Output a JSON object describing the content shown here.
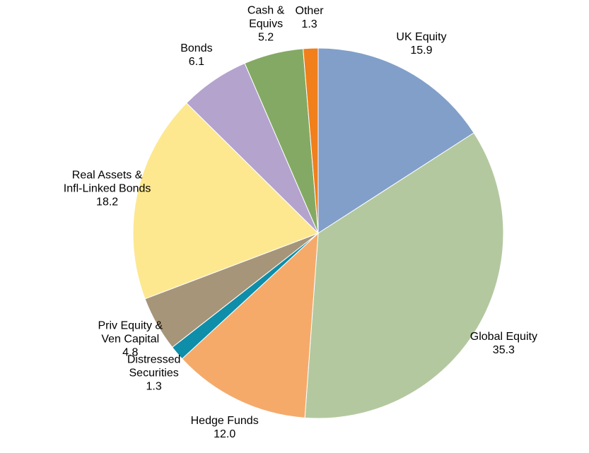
{
  "chart_data": {
    "type": "pie",
    "categories": [
      "UK Equity",
      "Global Equity",
      "Hedge Funds",
      "Distressed\nSecurities",
      "Priv Equity &\nVen Capital",
      "Real Assets &\nInfl-Linked Bonds",
      "Bonds",
      "Cash &\nEquivs",
      "Other"
    ],
    "values": [
      15.9,
      35.3,
      12.0,
      1.3,
      4.8,
      18.2,
      6.1,
      5.2,
      1.3
    ],
    "value_labels": [
      "15.9",
      "35.3",
      "12.0",
      "1.3",
      "4.8",
      "18.2",
      "6.1",
      "5.2",
      "1.3"
    ],
    "colors": [
      "#819fc9",
      "#b3c89f",
      "#f5aa6a",
      "#0e8ea9",
      "#a69579",
      "#fde890",
      "#b3a3cd",
      "#84a964",
      "#f07f1c"
    ]
  }
}
